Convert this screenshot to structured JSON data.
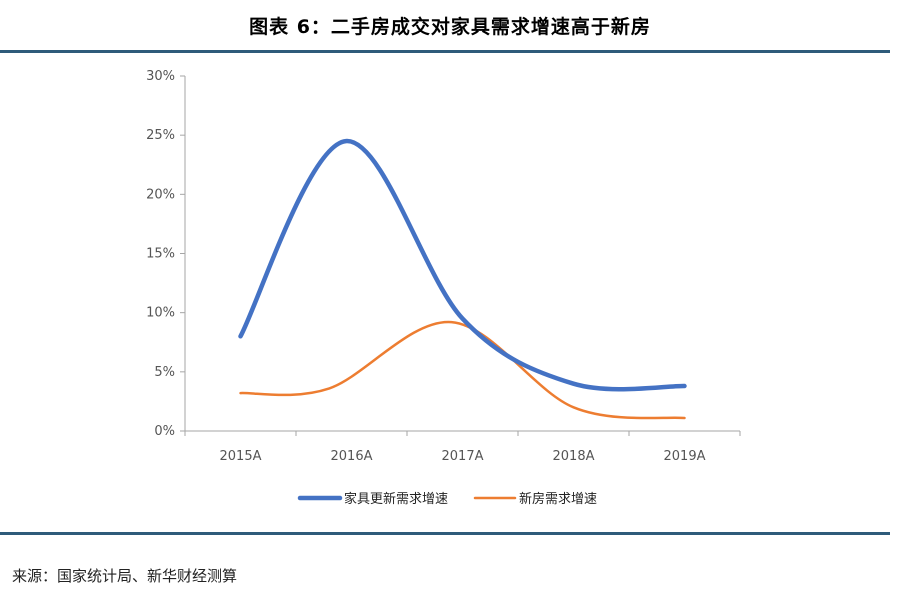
{
  "header": {
    "title": "图表 6：二手房成交对家具需求增速高于新房"
  },
  "footer": {
    "source": "来源：国家统计局、新华财经测算"
  },
  "chart_data": {
    "type": "line",
    "categories": [
      "2015A",
      "2016A",
      "2017A",
      "2018A",
      "2019A"
    ],
    "y_ticks": [
      "0%",
      "5%",
      "10%",
      "15%",
      "20%",
      "25%",
      "30%"
    ],
    "ylim": [
      0,
      30
    ],
    "y_unit": "%",
    "grid": false,
    "legend_position": "bottom",
    "smooth": true,
    "series": [
      {
        "name": "家具更新需求增速",
        "color": "#4472c4",
        "points": [
          [
            0,
            8.0
          ],
          [
            0.95,
            24.5
          ],
          [
            2.0,
            9.5
          ],
          [
            3.0,
            4.0
          ],
          [
            4.0,
            3.8
          ]
        ]
      },
      {
        "name": "新房需求增速",
        "color": "#ed7d31",
        "points": [
          [
            0,
            3.2
          ],
          [
            0.8,
            3.6
          ],
          [
            1.9,
            9.2
          ],
          [
            3.0,
            2.0
          ],
          [
            4.0,
            1.1
          ]
        ]
      }
    ]
  }
}
